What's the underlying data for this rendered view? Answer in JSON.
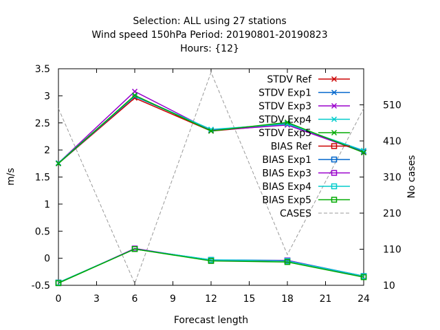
{
  "chart_data": {
    "type": "line",
    "title_lines": [
      "Selection: ALL using    27 stations",
      "Wind speed 150hPa   Period: 20190801-20190823",
      "Hours: {12}"
    ],
    "xlabel": "Forecast length",
    "ylabel": "m/s",
    "y2label": "No cases",
    "xlim": [
      0,
      24
    ],
    "ylim": [
      -0.5,
      3.5
    ],
    "y2lim": [
      10,
      610
    ],
    "x_ticks": [
      "0",
      "3",
      "6",
      "9",
      "12",
      "15",
      "18",
      "21",
      "24"
    ],
    "y_ticks": [
      "-0.5",
      "0",
      "0.5",
      "1",
      "1.5",
      "2",
      "2.5",
      "3",
      "3.5"
    ],
    "y2_ticks": [
      "10",
      "110",
      "210",
      "310",
      "410",
      "510"
    ],
    "legend_position": "top-right",
    "x": [
      0,
      6,
      12,
      18,
      24
    ],
    "series": [
      {
        "name": "STDV Ref",
        "axis": "y1",
        "marker": "x",
        "color": "#cc0000",
        "values": [
          1.75,
          2.96,
          2.35,
          2.47,
          1.96
        ]
      },
      {
        "name": "STDV Exp1",
        "axis": "y1",
        "marker": "x",
        "color": "#0066cc",
        "values": [
          1.75,
          2.99,
          2.37,
          2.49,
          1.97
        ]
      },
      {
        "name": "STDV Exp3",
        "axis": "y1",
        "marker": "x",
        "color": "#9900cc",
        "values": [
          1.76,
          3.08,
          2.36,
          2.46,
          1.96
        ]
      },
      {
        "name": "STDV Exp4",
        "axis": "y1",
        "marker": "x",
        "color": "#00cccc",
        "values": [
          1.76,
          3.0,
          2.38,
          2.48,
          1.99
        ]
      },
      {
        "name": "STDV Exp5",
        "axis": "y1",
        "marker": "x",
        "color": "#00aa00",
        "values": [
          1.75,
          3.01,
          2.35,
          2.51,
          1.95
        ]
      },
      {
        "name": "BIAS Ref",
        "axis": "y1",
        "marker": "square",
        "color": "#cc0000",
        "values": [
          -0.45,
          0.17,
          -0.04,
          -0.05,
          -0.33
        ]
      },
      {
        "name": "BIAS Exp1",
        "axis": "y1",
        "marker": "square",
        "color": "#0066cc",
        "values": [
          -0.45,
          0.17,
          -0.03,
          -0.04,
          -0.33
        ]
      },
      {
        "name": "BIAS Exp3",
        "axis": "y1",
        "marker": "square",
        "color": "#9900cc",
        "values": [
          -0.46,
          0.18,
          -0.04,
          -0.04,
          -0.34
        ]
      },
      {
        "name": "BIAS Exp4",
        "axis": "y1",
        "marker": "square",
        "color": "#00cccc",
        "values": [
          -0.45,
          0.17,
          -0.03,
          -0.05,
          -0.33
        ]
      },
      {
        "name": "BIAS Exp5",
        "axis": "y1",
        "marker": "square",
        "color": "#00aa00",
        "values": [
          -0.46,
          0.17,
          -0.05,
          -0.07,
          -0.35
        ]
      },
      {
        "name": "CASES",
        "axis": "y2",
        "marker": "none",
        "color": "#999999",
        "dashed": true,
        "values": [
          500,
          15,
          600,
          95,
          500
        ]
      }
    ]
  }
}
